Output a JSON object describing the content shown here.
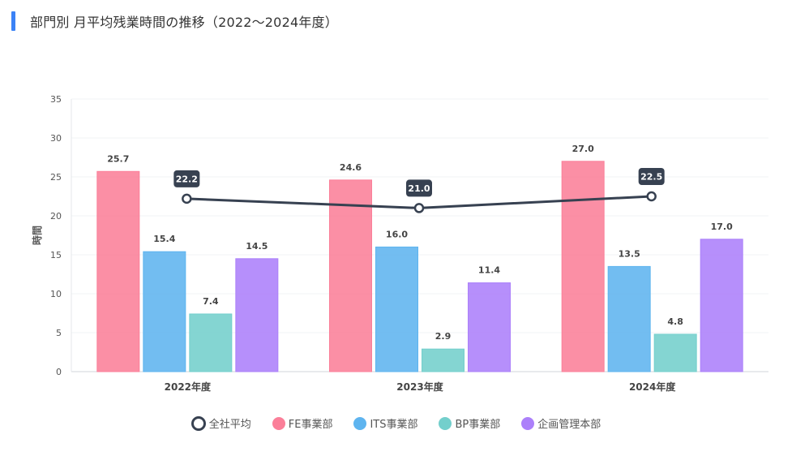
{
  "header": {
    "title": "部門別 月平均残業時間の推移（2022～2024年度）"
  },
  "colors": {
    "accent": "#3b82f6",
    "average": "#374151",
    "fe": "#fb7f99",
    "its": "#5eb4ef",
    "bp": "#73cfcc",
    "kikaku": "#ac80fa"
  },
  "legend": [
    {
      "label": "全社平均",
      "color": "#374151",
      "marker": "ring"
    },
    {
      "label": "FE事業部",
      "color": "#fb7f99",
      "marker": "dot"
    },
    {
      "label": "ITS事業部",
      "color": "#5eb4ef",
      "marker": "dot"
    },
    {
      "label": "BP事業部",
      "color": "#73cfcc",
      "marker": "dot"
    },
    {
      "label": "企画管理本部",
      "color": "#ac80fa",
      "marker": "dot"
    }
  ],
  "chart_data": {
    "type": "bar",
    "title": "部門別 月平均残業時間の推移（2022～2024年度）",
    "xlabel": "",
    "ylabel": "時間",
    "ylim": [
      0,
      35
    ],
    "yticks": [
      0,
      5,
      10,
      15,
      20,
      25,
      30,
      35
    ],
    "categories": [
      "2022年度",
      "2023年度",
      "2024年度"
    ],
    "series": [
      {
        "name": "FE事業部",
        "color": "#fb7f99",
        "values": [
          25.7,
          24.6,
          27.0
        ]
      },
      {
        "name": "ITS事業部",
        "color": "#5eb4ef",
        "values": [
          15.4,
          16.0,
          13.5
        ]
      },
      {
        "name": "BP事業部",
        "color": "#73cfcc",
        "values": [
          7.4,
          2.9,
          4.8
        ]
      },
      {
        "name": "企画管理本部",
        "color": "#ac80fa",
        "values": [
          14.5,
          11.4,
          17.0
        ]
      }
    ],
    "line_series": {
      "name": "全社平均",
      "color": "#374151",
      "values": [
        22.2,
        21.0,
        22.5
      ]
    },
    "legend_position": "bottom",
    "grid": true
  }
}
